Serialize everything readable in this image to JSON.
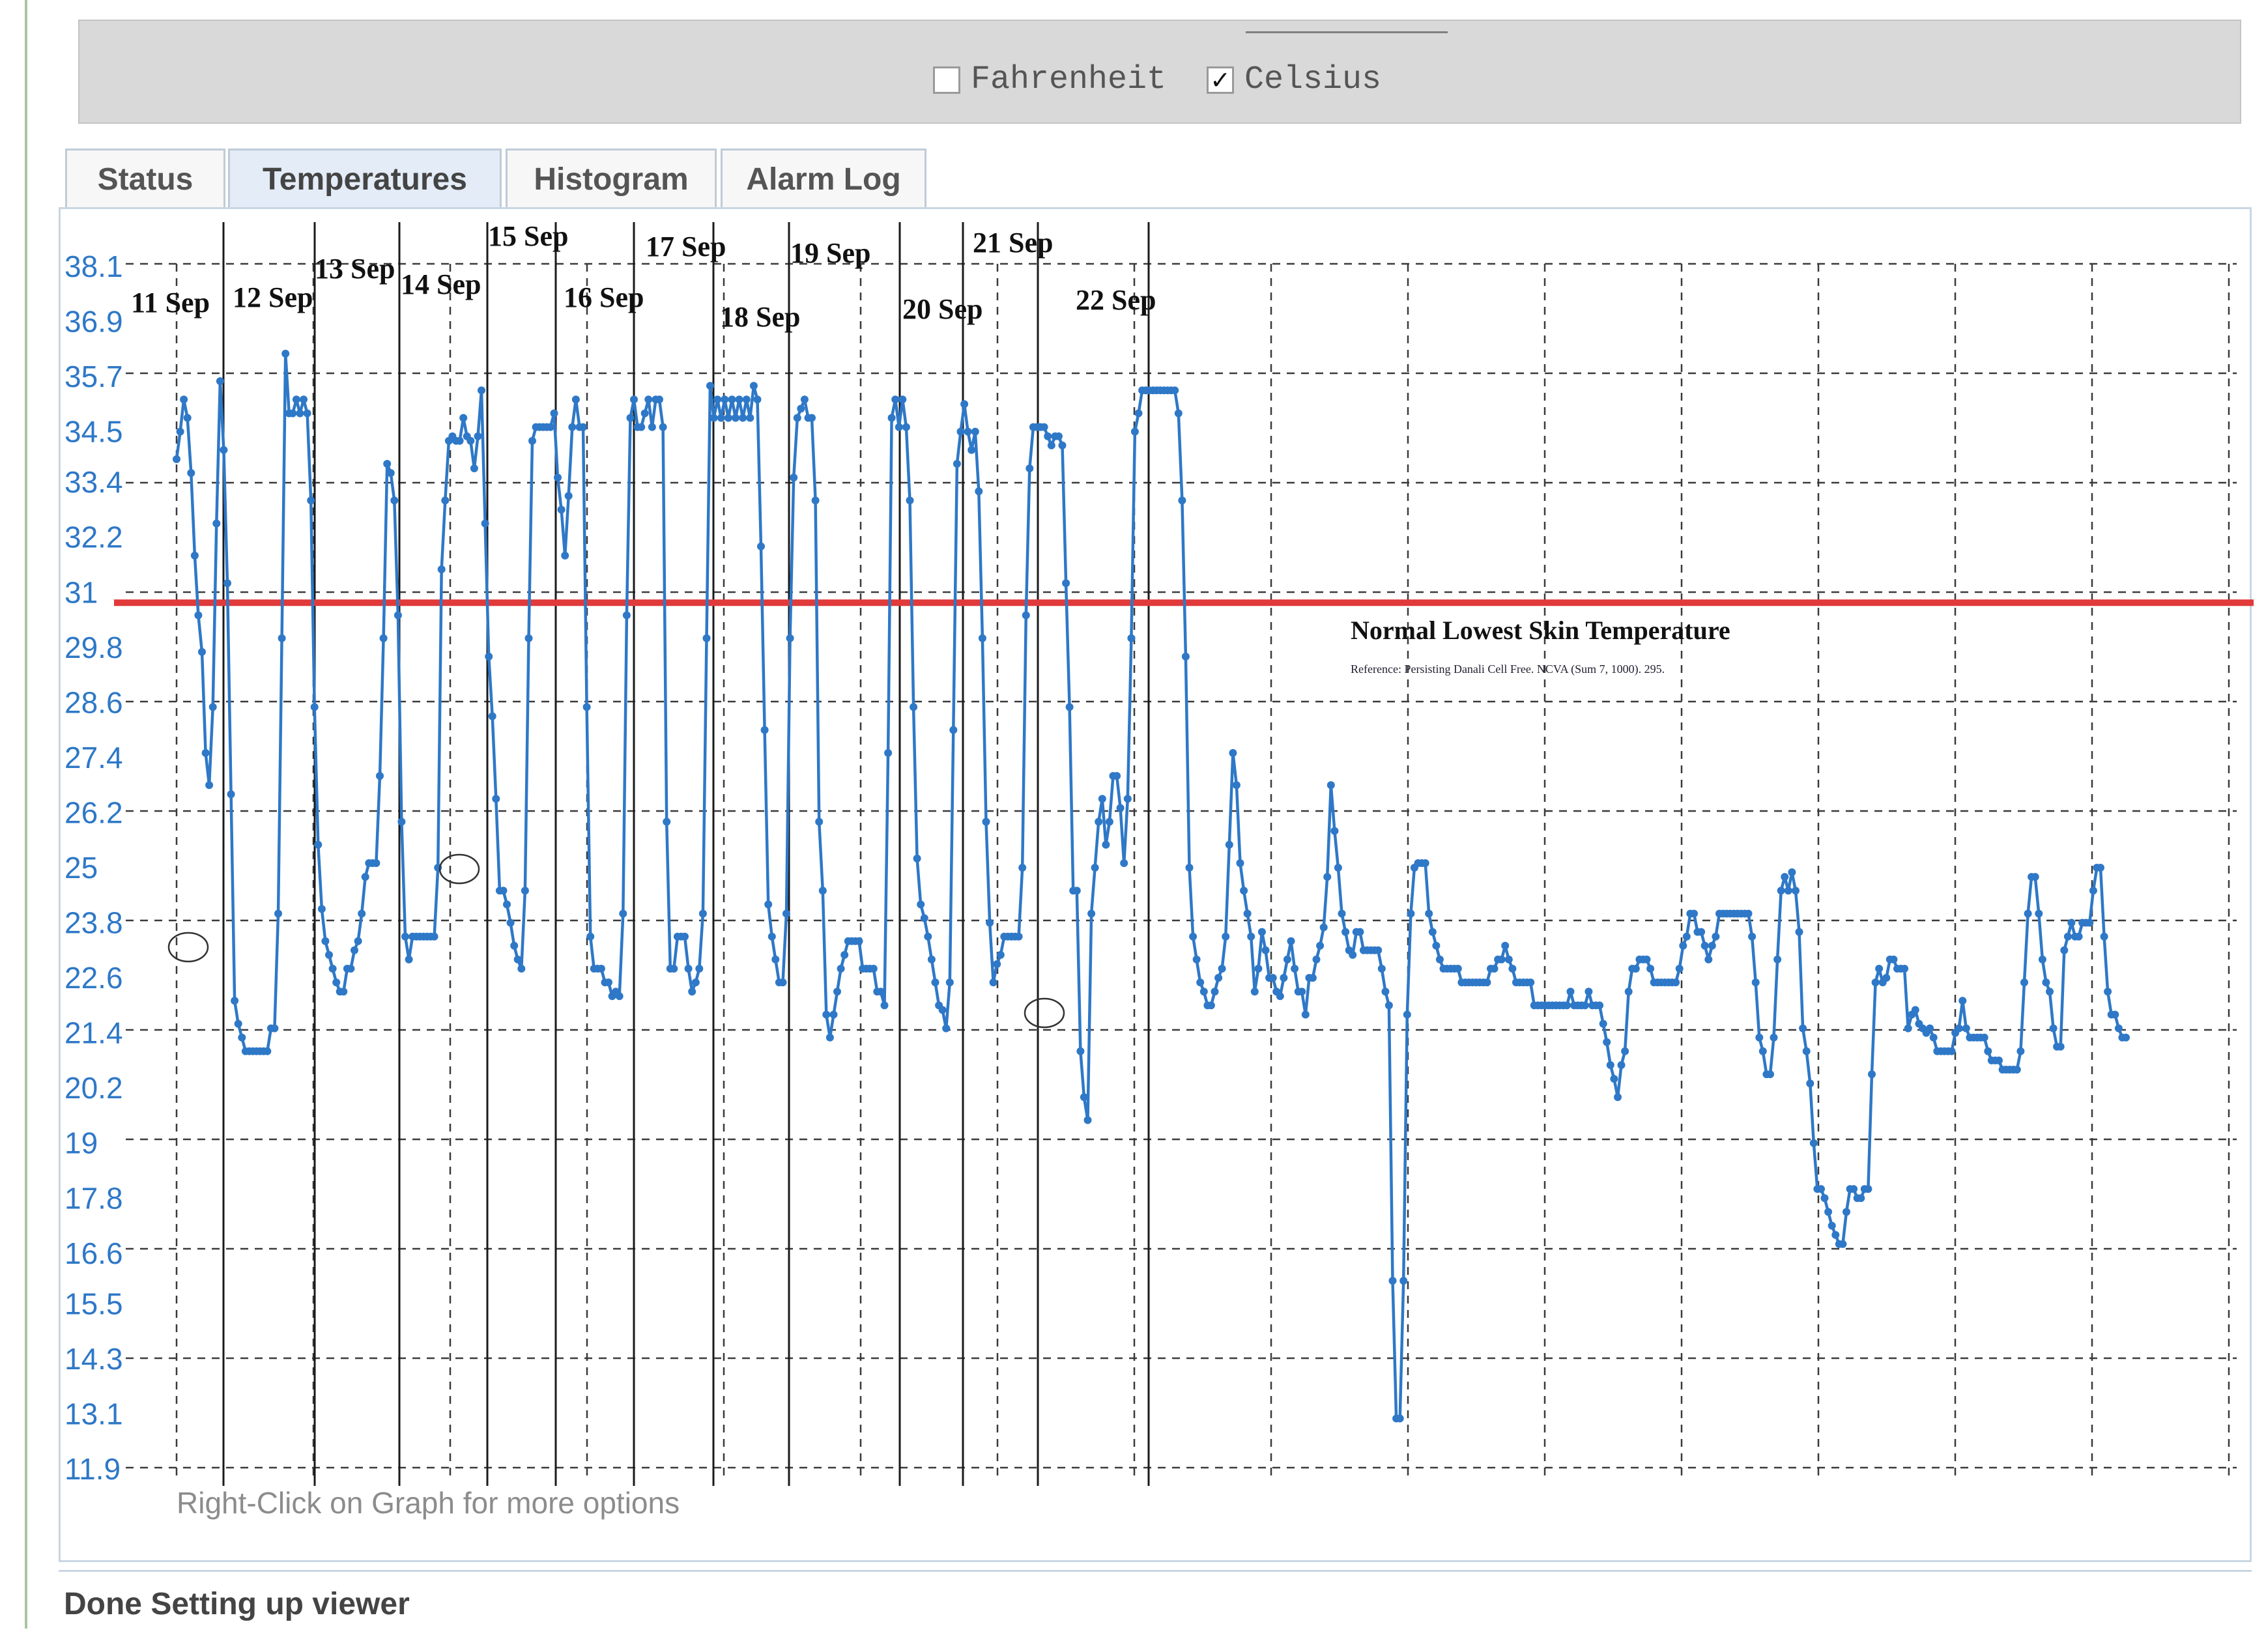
{
  "unit_toggle": {
    "fahrenheit": {
      "label": "Fahrenheit",
      "checked": false
    },
    "celsius": {
      "label": "Celsius",
      "checked": true
    }
  },
  "tabs": [
    {
      "label": "Status",
      "active": false
    },
    {
      "label": "Temperatures",
      "active": true
    },
    {
      "label": "Histogram",
      "active": false
    },
    {
      "label": "Alarm Log",
      "active": false
    }
  ],
  "status_bar": {
    "text": "Done Setting up viewer"
  },
  "hint": "Right-Click on Graph for more options",
  "colors": {
    "series": "#2e78c7",
    "threshold": "#e03a3a",
    "axis_labels": "#2e78c7",
    "grid": "#3a3a3a"
  },
  "chart_data": {
    "type": "line",
    "ylim": [
      11.9,
      38.1
    ],
    "yticks": [
      "38.1",
      "36.9",
      "35.7",
      "34.5",
      "33.4",
      "32.2",
      "31",
      "29.8",
      "28.6",
      "27.4",
      "26.2",
      "25",
      "23.8",
      "22.6",
      "21.4",
      "20.2",
      "19",
      "17.8",
      "16.6",
      "15.5",
      "14.3",
      "13.1",
      "11.9"
    ],
    "day_labels": [
      "11 Sep",
      "12 Sep",
      "13 Sep",
      "14 Sep",
      "15 Sep",
      "16 Sep",
      "17 Sep",
      "18 Sep",
      "19 Sep",
      "20 Sep",
      "21 Sep",
      "22 Sep"
    ],
    "threshold": {
      "value": 31,
      "label": "Normal Lowest Skin Temperature",
      "reference": "Reference: Persisting Danali Cell Free. NCVA (Sum 7, 1000). 295."
    },
    "series": [
      {
        "values": [
          33.9,
          34.5,
          35.2,
          34.8,
          33.6,
          31.8,
          30.5,
          29.7,
          27.5,
          26.8,
          28.5,
          32.5,
          35.6,
          34.1,
          31.2,
          26.6,
          22.1,
          21.6,
          21.3,
          21.0,
          21.0,
          21.0,
          21.0,
          21.0,
          21.0,
          21.0,
          21.5,
          21.5,
          24.0,
          30.0,
          36.2,
          34.9,
          34.9,
          35.2,
          34.9,
          35.2,
          34.9,
          33.0,
          28.5,
          25.5,
          24.1,
          23.4,
          23.1,
          22.8,
          22.5,
          22.3,
          22.3,
          22.8,
          22.8,
          23.2,
          23.4,
          24.0,
          24.8,
          25.1,
          25.1,
          25.1,
          27.0,
          30.0,
          33.8,
          33.6,
          33.0,
          30.5,
          26.0,
          23.5,
          23.0,
          23.5,
          23.5,
          23.5,
          23.5,
          23.5,
          23.5,
          23.5,
          25.0,
          31.5,
          33.0,
          34.3,
          34.4,
          34.3,
          34.3,
          34.8,
          34.4,
          34.3,
          33.7,
          34.4,
          35.4,
          32.5,
          29.6,
          28.3,
          26.5,
          24.5,
          24.5,
          24.2,
          23.8,
          23.3,
          23.0,
          22.8,
          24.5,
          30.0,
          34.3,
          34.6,
          34.6,
          34.6,
          34.6,
          34.6,
          34.9,
          33.5,
          32.8,
          31.8,
          33.1,
          34.6,
          35.2,
          34.6,
          34.6,
          28.5,
          23.5,
          22.8,
          22.8,
          22.8,
          22.5,
          22.5,
          22.2,
          22.3,
          22.2,
          24.0,
          30.5,
          34.8,
          35.2,
          34.6,
          34.6,
          34.9,
          35.2,
          34.6,
          35.2,
          35.2,
          34.6,
          26.0,
          22.8,
          22.8,
          23.5,
          23.5,
          23.5,
          22.8,
          22.3,
          22.5,
          22.8,
          24.0,
          30.0,
          35.5,
          34.8,
          35.2,
          34.8,
          35.2,
          34.8,
          35.2,
          34.8,
          35.2,
          34.8,
          35.2,
          34.8,
          35.5,
          35.2,
          32.0,
          28.0,
          24.2,
          23.5,
          23.0,
          22.5,
          22.5,
          24.0,
          30.0,
          33.5,
          34.8,
          35.0,
          35.2,
          34.8,
          34.8,
          33.0,
          26.0,
          24.5,
          21.8,
          21.3,
          21.8,
          22.3,
          22.8,
          23.1,
          23.4,
          23.4,
          23.4,
          23.4,
          22.8,
          22.8,
          22.8,
          22.8,
          22.3,
          22.3,
          22.0,
          27.5,
          34.8,
          35.2,
          34.6,
          35.2,
          34.6,
          33.0,
          28.5,
          25.2,
          24.2,
          23.9,
          23.5,
          23.0,
          22.5,
          22.0,
          21.9,
          21.5,
          22.5,
          28.0,
          33.8,
          34.5,
          35.1,
          34.5,
          34.1,
          34.5,
          33.2,
          30.0,
          26.0,
          23.8,
          22.5,
          22.9,
          23.1,
          23.5,
          23.5,
          23.5,
          23.5,
          23.5,
          25.0,
          30.5,
          33.7,
          34.6,
          34.6,
          34.6,
          34.6,
          34.4,
          34.2,
          34.4,
          34.4,
          34.2,
          31.2,
          28.5,
          24.5,
          24.5,
          21.0,
          20.0,
          19.5,
          24.0,
          25.0,
          26.0,
          26.5,
          25.5,
          26.0,
          27.0,
          27.0,
          26.3,
          25.1,
          26.5,
          30.0,
          34.5,
          34.9,
          35.4,
          35.4,
          35.4,
          35.4,
          35.4,
          35.4,
          35.4,
          35.4,
          35.4,
          35.4,
          34.9,
          33.0,
          29.6,
          25.0,
          23.5,
          23.0,
          22.5,
          22.3,
          22.0,
          22.0,
          22.3,
          22.6,
          22.8,
          23.5,
          25.5,
          27.5,
          26.8,
          25.1,
          24.5,
          24.0,
          23.5,
          22.3,
          22.8,
          23.6,
          23.2,
          22.6,
          22.6,
          22.3,
          22.2,
          22.6,
          23.0,
          23.4,
          22.8,
          22.3,
          22.3,
          21.8,
          22.6,
          22.6,
          23.0,
          23.3,
          23.7,
          24.8,
          26.8,
          25.8,
          25.0,
          24.0,
          23.6,
          23.2,
          23.1,
          23.6,
          23.6,
          23.2,
          23.2,
          23.2,
          23.2,
          23.2,
          22.8,
          22.3,
          22.0,
          16.0,
          13.0,
          13.0,
          16.0,
          21.8,
          24.0,
          25.0,
          25.1,
          25.1,
          25.1,
          24.0,
          23.6,
          23.3,
          23.0,
          22.8,
          22.8,
          22.8,
          22.8,
          22.8,
          22.5,
          22.5,
          22.5,
          22.5,
          22.5,
          22.5,
          22.5,
          22.5,
          22.8,
          22.8,
          23.0,
          23.0,
          23.3,
          23.0,
          22.8,
          22.5,
          22.5,
          22.5,
          22.5,
          22.5,
          22.0,
          22.0,
          22.0,
          22.0,
          22.0,
          22.0,
          22.0,
          22.0,
          22.0,
          22.0,
          22.3,
          22.0,
          22.0,
          22.0,
          22.0,
          22.3,
          22.0,
          22.0,
          22.0,
          21.6,
          21.2,
          20.7,
          20.4,
          20.0,
          20.7,
          21.0,
          22.3,
          22.8,
          22.8,
          23.0,
          23.0,
          23.0,
          22.8,
          22.5,
          22.5,
          22.5,
          22.5,
          22.5,
          22.5,
          22.5,
          22.8,
          23.3,
          23.5,
          24.0,
          24.0,
          23.6,
          23.6,
          23.3,
          23.0,
          23.3,
          23.5,
          24.0,
          24.0,
          24.0,
          24.0,
          24.0,
          24.0,
          24.0,
          24.0,
          24.0,
          23.5,
          22.5,
          21.3,
          21.0,
          20.5,
          20.5,
          21.3,
          23.0,
          24.5,
          24.8,
          24.5,
          24.9,
          24.5,
          23.6,
          21.5,
          21.0,
          20.3,
          19.0,
          18.0,
          18.0,
          17.8,
          17.5,
          17.2,
          17.0,
          16.8,
          16.8,
          17.5,
          18.0,
          18.0,
          17.8,
          17.8,
          18.0,
          18.0,
          20.5,
          22.5,
          22.8,
          22.5,
          22.6,
          23.0,
          23.0,
          22.8,
          22.8,
          22.8,
          21.5,
          21.8,
          21.9,
          21.6,
          21.5,
          21.4,
          21.5,
          21.3,
          21.0,
          21.0,
          21.0,
          21.0,
          21.0,
          21.4,
          21.5,
          22.1,
          21.5,
          21.3,
          21.3,
          21.3,
          21.3,
          21.3,
          21.0,
          20.8,
          20.8,
          20.8,
          20.6,
          20.6,
          20.6,
          20.6,
          20.6,
          21.0,
          22.5,
          24.0,
          24.8,
          24.8,
          24.0,
          23.0,
          22.5,
          22.3,
          21.5,
          21.1,
          21.1,
          23.2,
          23.5,
          23.8,
          23.5,
          23.5,
          23.8,
          23.8,
          23.8,
          24.5,
          25.0,
          25.0,
          23.5,
          22.3,
          21.8,
          21.8,
          21.5,
          21.3,
          21.3
        ]
      }
    ]
  }
}
